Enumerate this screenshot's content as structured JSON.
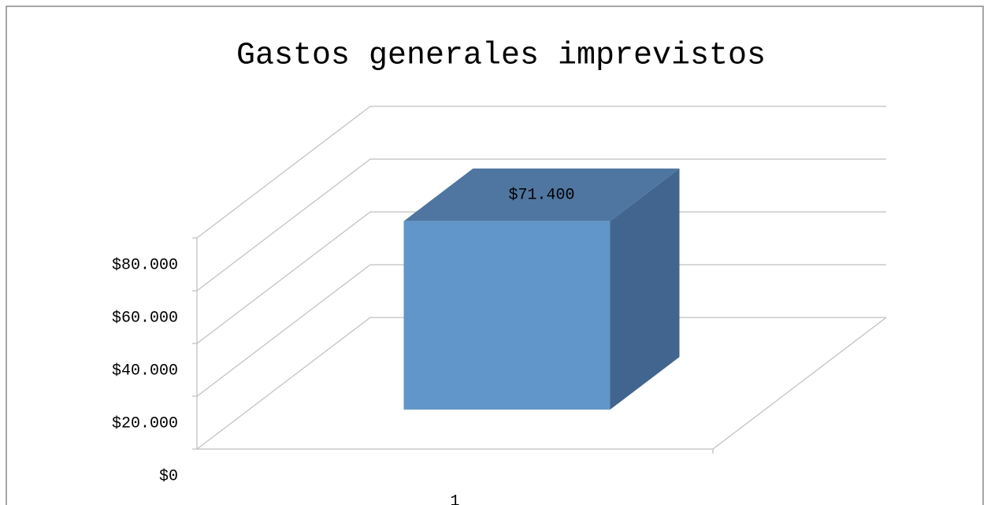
{
  "chart_data": {
    "type": "bar3d",
    "title": "Gastos generales imprevistos",
    "categories": [
      "1"
    ],
    "values": [
      71400
    ],
    "value_labels": [
      "$71.400"
    ],
    "colors": {
      "front": "#6096c9",
      "top": "#4f76a0",
      "side": "#41658e"
    },
    "ylim": [
      0,
      80000
    ],
    "yticks": [
      {
        "value": 0,
        "label": "$0"
      },
      {
        "value": 20000,
        "label": "$20.000"
      },
      {
        "value": 40000,
        "label": "$40.000"
      },
      {
        "value": 60000,
        "label": "$60.000"
      },
      {
        "value": 80000,
        "label": "$80.000"
      }
    ],
    "grid": true
  }
}
